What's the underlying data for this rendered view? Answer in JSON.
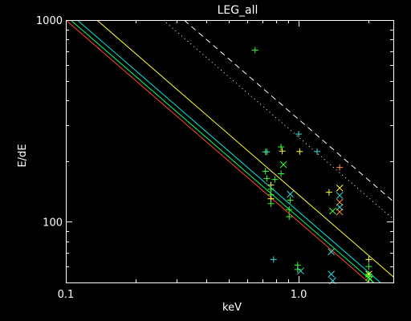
{
  "chart_data": {
    "type": "scatter",
    "title": "LEG_all",
    "xlabel": "keV",
    "ylabel": "E/dE",
    "xscale": "log",
    "yscale": "log",
    "xlim": [
      0.1,
      2.55
    ],
    "ylim": [
      50,
      1000
    ],
    "x_major_ticks": [
      {
        "value": 0.1,
        "label": "0.1"
      },
      {
        "value": 1.0,
        "label": "1.0"
      }
    ],
    "y_major_ticks": [
      {
        "value": 100,
        "label": "100"
      },
      {
        "value": 1000,
        "label": "1000"
      }
    ],
    "background": "#000000",
    "axis_color": "#ffffff",
    "grid": false,
    "legend": "none",
    "reference_lines": [
      {
        "style": "solid",
        "color": "#ff4a1c",
        "slope": -1,
        "points": [
          [
            0.1,
            1000
          ],
          [
            2.4,
            41.7
          ]
        ]
      },
      {
        "style": "solid",
        "color": "#00ff60",
        "slope": -1,
        "points": [
          [
            0.105,
            1000
          ],
          [
            2.5,
            42
          ]
        ]
      },
      {
        "style": "solid",
        "color": "#00e5e5",
        "slope": -1,
        "points": [
          [
            0.112,
            1000
          ],
          [
            2.55,
            44
          ]
        ]
      },
      {
        "style": "solid",
        "color": "#ffff33",
        "slope": -1,
        "points": [
          [
            0.136,
            1000
          ],
          [
            2.55,
            53.3
          ]
        ]
      },
      {
        "style": "dotted",
        "color": "#ffffff",
        "slope": -1,
        "points": [
          [
            0.262,
            1000
          ],
          [
            2.55,
            103
          ]
        ]
      },
      {
        "style": "dashed",
        "color": "#ffffff",
        "slope": -1,
        "points": [
          [
            0.322,
            1000
          ],
          [
            2.55,
            126
          ]
        ]
      }
    ],
    "series": [
      {
        "marker": "plus",
        "points": [
          {
            "x": 0.65,
            "y": 710,
            "color": "#33ff33"
          },
          {
            "x": 0.72,
            "y": 222,
            "color": "#33ff33"
          },
          {
            "x": 0.84,
            "y": 235,
            "color": "#33ff33"
          },
          {
            "x": 0.85,
            "y": 224,
            "color": "#ffff33"
          },
          {
            "x": 0.84,
            "y": 173,
            "color": "#33ff33"
          },
          {
            "x": 0.79,
            "y": 162,
            "color": "#33ff33"
          },
          {
            "x": 0.72,
            "y": 178,
            "color": "#33ff33"
          },
          {
            "x": 0.73,
            "y": 164,
            "color": "#33ff33"
          },
          {
            "x": 0.76,
            "y": 152,
            "color": "#ffff33"
          },
          {
            "x": 0.76,
            "y": 145,
            "color": "#33ff33"
          },
          {
            "x": 0.76,
            "y": 136,
            "color": "#33ff33"
          },
          {
            "x": 0.76,
            "y": 130,
            "color": "#ffff33"
          },
          {
            "x": 0.76,
            "y": 123,
            "color": "#33ff33"
          },
          {
            "x": 0.92,
            "y": 128,
            "color": "#33ff33"
          },
          {
            "x": 0.91,
            "y": 115,
            "color": "#33ff33"
          },
          {
            "x": 0.91,
            "y": 106,
            "color": "#33ff33"
          },
          {
            "x": 0.99,
            "y": 61,
            "color": "#33ff33"
          },
          {
            "x": 0.99,
            "y": 58,
            "color": "#33ff33"
          },
          {
            "x": 1.01,
            "y": 223,
            "color": "#ffff33"
          },
          {
            "x": 1.0,
            "y": 272,
            "color": "#33dddd"
          },
          {
            "x": 0.73,
            "y": 222,
            "color": "#33dddd"
          },
          {
            "x": 0.78,
            "y": 65,
            "color": "#33dddd"
          },
          {
            "x": 1.2,
            "y": 223,
            "color": "#33dddd"
          },
          {
            "x": 1.35,
            "y": 140,
            "color": "#ffff33"
          },
          {
            "x": 1.5,
            "y": 186,
            "color": "#ff8844"
          },
          {
            "x": 2.0,
            "y": 65,
            "color": "#ffff33"
          },
          {
            "x": 2.0,
            "y": 60,
            "color": "#33ff33"
          },
          {
            "x": 2.0,
            "y": 55,
            "color": "#33ff33"
          }
        ]
      },
      {
        "marker": "cross",
        "points": [
          {
            "x": 0.86,
            "y": 192,
            "color": "#33ff33"
          },
          {
            "x": 0.92,
            "y": 137,
            "color": "#33dddd"
          },
          {
            "x": 1.5,
            "y": 147,
            "color": "#ffff33"
          },
          {
            "x": 1.5,
            "y": 135,
            "color": "#33dddd"
          },
          {
            "x": 1.5,
            "y": 125,
            "color": "#ff8844"
          },
          {
            "x": 1.5,
            "y": 118,
            "color": "#33dddd"
          },
          {
            "x": 1.5,
            "y": 112,
            "color": "#ff8844"
          },
          {
            "x": 1.4,
            "y": 113,
            "color": "#33ff33"
          },
          {
            "x": 1.38,
            "y": 71,
            "color": "#33dddd"
          },
          {
            "x": 1.38,
            "y": 55,
            "color": "#33dddd"
          },
          {
            "x": 1.02,
            "y": 57,
            "color": "#33dddd"
          },
          {
            "x": 1.4,
            "y": 51,
            "color": "#33dddd"
          },
          {
            "x": 2.0,
            "y": 55,
            "color": "#ffff33"
          },
          {
            "x": 2.0,
            "y": 53,
            "color": "#33ff33"
          },
          {
            "x": 2.02,
            "y": 52,
            "color": "#33ff33"
          }
        ]
      }
    ]
  }
}
